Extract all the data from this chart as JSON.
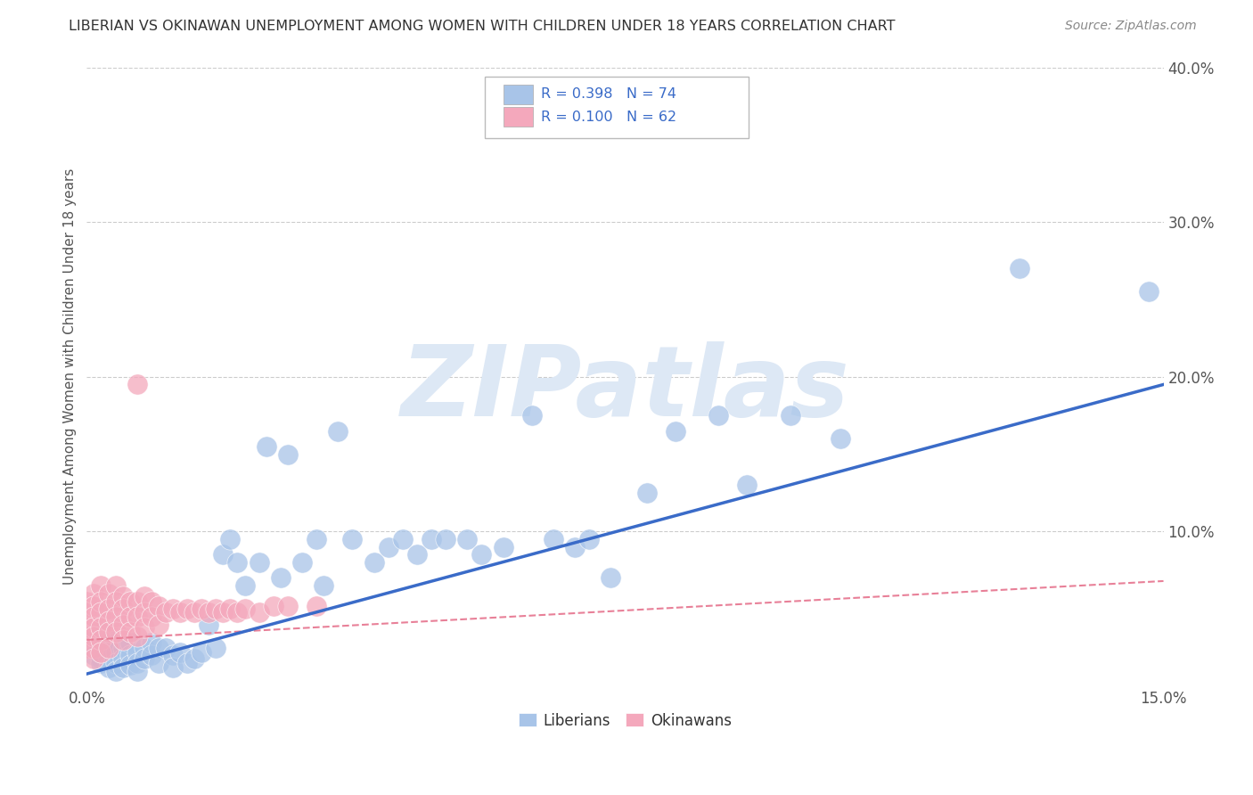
{
  "title": "LIBERIAN VS OKINAWAN UNEMPLOYMENT AMONG WOMEN WITH CHILDREN UNDER 18 YEARS CORRELATION CHART",
  "source": "Source: ZipAtlas.com",
  "ylabel": "Unemployment Among Women with Children Under 18 years",
  "xlim": [
    0.0,
    0.15
  ],
  "ylim": [
    0.0,
    0.4
  ],
  "xtick_positions": [
    0.0,
    0.15
  ],
  "xtick_labels": [
    "0.0%",
    "15.0%"
  ],
  "ytick_positions_left": [],
  "ytick_positions_right": [
    0.0,
    0.1,
    0.2,
    0.3,
    0.4
  ],
  "ytick_labels_right": [
    "",
    "10.0%",
    "20.0%",
    "30.0%",
    "40.0%"
  ],
  "legend_R1": "R = 0.398",
  "legend_N1": "N = 74",
  "legend_R2": "R = 0.100",
  "legend_N2": "N = 62",
  "liberian_color": "#a8c4e8",
  "okinawan_color": "#f4a8bc",
  "trend_blue_color": "#3a6bc8",
  "trend_pink_color": "#e88098",
  "watermark": "ZIPatlas",
  "watermark_color": "#dde8f5",
  "grid_color": "#cccccc",
  "liberian_x": [
    0.001,
    0.001,
    0.001,
    0.002,
    0.002,
    0.002,
    0.002,
    0.003,
    0.003,
    0.003,
    0.003,
    0.004,
    0.004,
    0.004,
    0.004,
    0.005,
    0.005,
    0.005,
    0.006,
    0.006,
    0.006,
    0.007,
    0.007,
    0.007,
    0.008,
    0.008,
    0.009,
    0.009,
    0.01,
    0.01,
    0.011,
    0.012,
    0.012,
    0.013,
    0.014,
    0.015,
    0.016,
    0.017,
    0.018,
    0.019,
    0.02,
    0.021,
    0.022,
    0.024,
    0.025,
    0.027,
    0.028,
    0.03,
    0.032,
    0.033,
    0.035,
    0.037,
    0.04,
    0.042,
    0.044,
    0.046,
    0.048,
    0.05,
    0.053,
    0.055,
    0.058,
    0.062,
    0.065,
    0.068,
    0.07,
    0.073,
    0.078,
    0.082,
    0.088,
    0.092,
    0.098,
    0.105,
    0.13,
    0.148
  ],
  "liberian_y": [
    0.03,
    0.025,
    0.02,
    0.035,
    0.022,
    0.018,
    0.015,
    0.03,
    0.025,
    0.018,
    0.012,
    0.028,
    0.022,
    0.015,
    0.01,
    0.025,
    0.018,
    0.012,
    0.028,
    0.02,
    0.014,
    0.022,
    0.015,
    0.01,
    0.025,
    0.018,
    0.028,
    0.02,
    0.025,
    0.015,
    0.025,
    0.02,
    0.012,
    0.022,
    0.015,
    0.018,
    0.022,
    0.04,
    0.025,
    0.085,
    0.095,
    0.08,
    0.065,
    0.08,
    0.155,
    0.07,
    0.15,
    0.08,
    0.095,
    0.065,
    0.165,
    0.095,
    0.08,
    0.09,
    0.095,
    0.085,
    0.095,
    0.095,
    0.095,
    0.085,
    0.09,
    0.175,
    0.095,
    0.09,
    0.095,
    0.07,
    0.125,
    0.165,
    0.175,
    0.13,
    0.175,
    0.16,
    0.27,
    0.255
  ],
  "okinawan_x": [
    0.0,
    0.0,
    0.0,
    0.0,
    0.0,
    0.0,
    0.001,
    0.001,
    0.001,
    0.001,
    0.001,
    0.001,
    0.001,
    0.002,
    0.002,
    0.002,
    0.002,
    0.002,
    0.002,
    0.003,
    0.003,
    0.003,
    0.003,
    0.003,
    0.004,
    0.004,
    0.004,
    0.004,
    0.005,
    0.005,
    0.005,
    0.005,
    0.006,
    0.006,
    0.006,
    0.007,
    0.007,
    0.007,
    0.008,
    0.008,
    0.008,
    0.009,
    0.009,
    0.01,
    0.01,
    0.011,
    0.012,
    0.013,
    0.014,
    0.015,
    0.016,
    0.017,
    0.018,
    0.019,
    0.02,
    0.021,
    0.022,
    0.024,
    0.026,
    0.028,
    0.032,
    0.007
  ],
  "okinawan_y": [
    0.055,
    0.048,
    0.042,
    0.038,
    0.032,
    0.025,
    0.06,
    0.052,
    0.045,
    0.038,
    0.032,
    0.025,
    0.018,
    0.065,
    0.055,
    0.048,
    0.038,
    0.03,
    0.022,
    0.06,
    0.05,
    0.042,
    0.035,
    0.025,
    0.065,
    0.055,
    0.045,
    0.035,
    0.058,
    0.05,
    0.04,
    0.03,
    0.055,
    0.045,
    0.035,
    0.055,
    0.045,
    0.032,
    0.058,
    0.048,
    0.038,
    0.055,
    0.045,
    0.052,
    0.04,
    0.048,
    0.05,
    0.048,
    0.05,
    0.048,
    0.05,
    0.048,
    0.05,
    0.048,
    0.05,
    0.048,
    0.05,
    0.048,
    0.052,
    0.052,
    0.052,
    0.195
  ],
  "trend_lib_x0": 0.0,
  "trend_lib_x1": 0.15,
  "trend_lib_y0": 0.008,
  "trend_lib_y1": 0.195,
  "trend_oki_x0": 0.0,
  "trend_oki_x1": 0.15,
  "trend_oki_y0": 0.03,
  "trend_oki_y1": 0.068
}
